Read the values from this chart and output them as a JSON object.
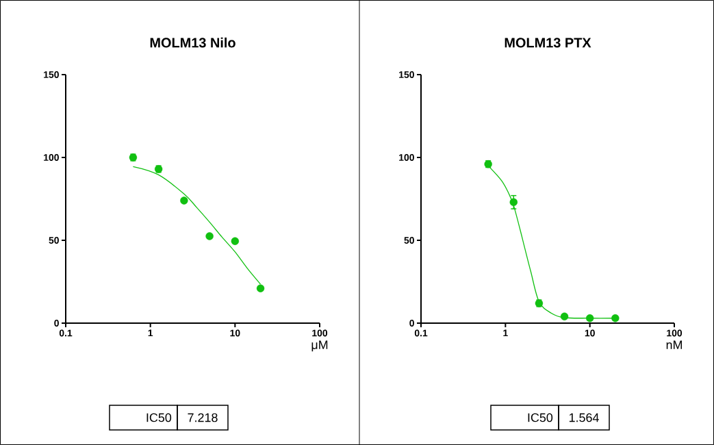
{
  "chart_data": [
    {
      "type": "scatter",
      "title": "MOLM13 Nilo",
      "xlabel": "μM",
      "x": [
        0.625,
        1.25,
        2.5,
        5,
        10,
        20
      ],
      "log": "x",
      "xlim": [
        0.1,
        100
      ],
      "xticks": [
        0.1,
        1,
        10,
        100
      ],
      "ylim": [
        0,
        150
      ],
      "yticks": [
        0,
        50,
        100,
        150
      ],
      "annotations": [
        "IC50",
        "7.218"
      ],
      "series": [
        {
          "marker": "circle",
          "color": "#11c011",
          "values": [
            100,
            93,
            74,
            52.5,
            49.5,
            21
          ],
          "errors": [
            2,
            2,
            null,
            null,
            null,
            null
          ]
        },
        {
          "type": "line",
          "marker": "none",
          "color": "#11c011",
          "x": [
            0.625,
            1.25,
            2.5,
            3.5,
            5,
            7,
            10,
            14,
            20
          ],
          "values": [
            94.5,
            89.5,
            78,
            70,
            61,
            52,
            43,
            33,
            23.5
          ]
        }
      ]
    },
    {
      "type": "scatter",
      "title": "MOLM13 PTX",
      "xlabel": "nM",
      "x": [
        0.625,
        1.25,
        2.5,
        5,
        10,
        20
      ],
      "log": "x",
      "xlim": [
        0.1,
        100
      ],
      "xticks": [
        0.1,
        1,
        10,
        100
      ],
      "ylim": [
        0,
        150
      ],
      "yticks": [
        0,
        50,
        100,
        150
      ],
      "annotations": [
        "IC50",
        "1.564"
      ],
      "series": [
        {
          "marker": "circle",
          "color": "#11c011",
          "values": [
            96,
            73,
            12,
            4,
            3,
            3
          ],
          "errors": [
            2,
            4,
            2,
            null,
            null,
            null
          ]
        },
        {
          "type": "line",
          "marker": "none",
          "color": "#11c011",
          "x": [
            0.625,
            0.9,
            1.1,
            1.25,
            1.5,
            1.7,
            2,
            2.5,
            3.5,
            5,
            10,
            20
          ],
          "values": [
            95,
            86,
            78,
            71,
            56,
            45,
            31,
            13,
            6,
            3.3,
            3,
            3
          ]
        }
      ]
    }
  ]
}
